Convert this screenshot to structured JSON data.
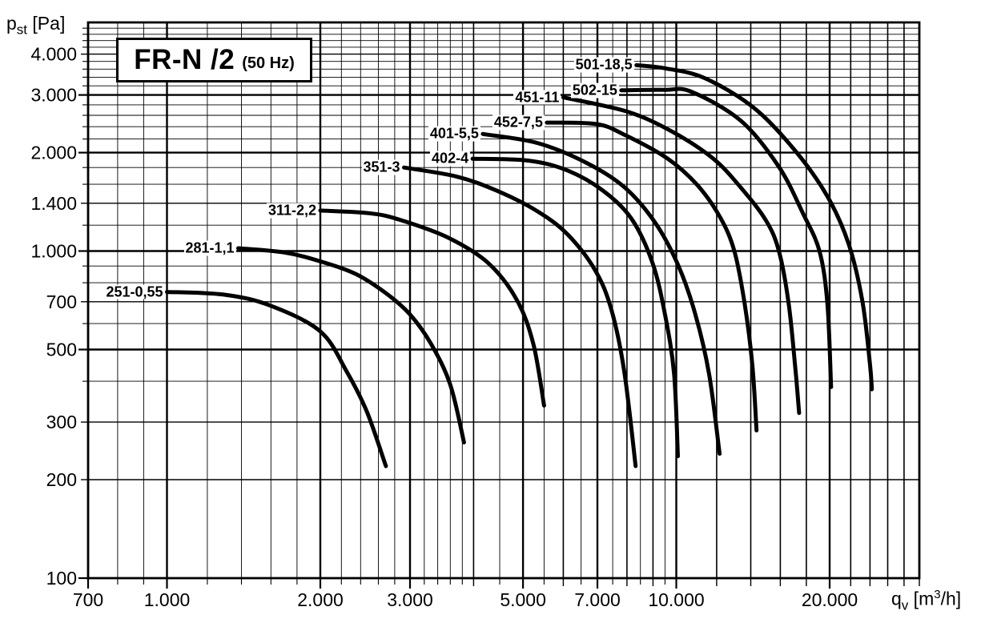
{
  "chart_data": {
    "type": "line",
    "title": {
      "main": "FR-N /2",
      "sub": "(50 Hz)"
    },
    "x_axis": {
      "unit_base": "q",
      "unit_sub": "v",
      "unit_rest_1": " [m",
      "unit_sup": "3",
      "unit_rest_2": "/h]",
      "scale": "log",
      "min": 700,
      "max": 30000,
      "ticks": [
        {
          "v": 700,
          "label": "700"
        },
        {
          "v": 1000,
          "label": "1.000"
        },
        {
          "v": 2000,
          "label": "2.000"
        },
        {
          "v": 3000,
          "label": "3.000"
        },
        {
          "v": 5000,
          "label": "5.000"
        },
        {
          "v": 7000,
          "label": "7.000"
        },
        {
          "v": 10000,
          "label": "10.000"
        },
        {
          "v": 20000,
          "label": "20.000"
        }
      ]
    },
    "y_axis": {
      "unit_base": "p",
      "unit_sub": "st",
      "unit_rest": " [Pa]",
      "scale": "log",
      "min": 100,
      "max": 5000,
      "ticks": [
        {
          "v": 100,
          "label": "100"
        },
        {
          "v": 200,
          "label": "200"
        },
        {
          "v": 300,
          "label": "300"
        },
        {
          "v": 500,
          "label": "500"
        },
        {
          "v": 700,
          "label": "700"
        },
        {
          "v": 1000,
          "label": "1.000"
        },
        {
          "v": 1400,
          "label": "1.400"
        },
        {
          "v": 2000,
          "label": "2.000"
        },
        {
          "v": 3000,
          "label": "3.000"
        },
        {
          "v": 4000,
          "label": "4.000"
        }
      ]
    },
    "grid": {
      "x_major": [
        1000,
        2000,
        3000,
        5000,
        7000,
        10000,
        20000
      ],
      "x_semi": [
        4000,
        6000,
        8000,
        9000,
        12000,
        14000,
        16000,
        18000,
        22000,
        24000,
        26000,
        28000
      ],
      "x_minor": [
        800,
        900,
        1200,
        1400,
        1600,
        1800,
        2200,
        2400,
        2600,
        2800,
        3200,
        3400,
        3600,
        3800,
        4500,
        5500,
        6500,
        7500,
        8500,
        9500
      ],
      "y_major": [
        500,
        1000,
        2000,
        3000
      ],
      "y_semi": [
        200,
        300,
        700,
        1400,
        4000
      ],
      "y_minor": [
        400,
        600,
        800,
        900,
        1200,
        1600,
        1800,
        2200,
        2400,
        2600,
        2800,
        3200,
        3400,
        3600,
        3800,
        4200,
        4400,
        4600,
        4800
      ]
    },
    "series": [
      {
        "name": "251-0,55",
        "points": [
          [
            1000,
            750
          ],
          [
            1300,
            735
          ],
          [
            1600,
            680
          ],
          [
            2000,
            568
          ],
          [
            2250,
            430
          ],
          [
            2470,
            322
          ],
          [
            2690,
            220
          ]
        ]
      },
      {
        "name": "281-1,1",
        "points": [
          [
            1380,
            1020
          ],
          [
            1700,
            990
          ],
          [
            2000,
            930
          ],
          [
            2350,
            850
          ],
          [
            2700,
            740
          ],
          [
            3000,
            640
          ],
          [
            3300,
            520
          ],
          [
            3600,
            390
          ],
          [
            3830,
            260
          ]
        ]
      },
      {
        "name": "311-2,2",
        "points": [
          [
            2000,
            1330
          ],
          [
            2500,
            1305
          ],
          [
            2870,
            1245
          ],
          [
            3560,
            1100
          ],
          [
            4270,
            920
          ],
          [
            4860,
            710
          ],
          [
            5240,
            520
          ],
          [
            5500,
            337
          ]
        ]
      },
      {
        "name": "351-3",
        "points": [
          [
            2920,
            1800
          ],
          [
            3700,
            1690
          ],
          [
            4440,
            1530
          ],
          [
            5330,
            1325
          ],
          [
            6130,
            1120
          ],
          [
            6940,
            870
          ],
          [
            7460,
            660
          ],
          [
            7900,
            430
          ],
          [
            8320,
            220
          ]
        ]
      },
      {
        "name": "402-4",
        "points": [
          [
            3980,
            1915
          ],
          [
            5130,
            1890
          ],
          [
            6130,
            1760
          ],
          [
            7180,
            1530
          ],
          [
            8180,
            1250
          ],
          [
            8980,
            920
          ],
          [
            9500,
            640
          ],
          [
            9900,
            420
          ],
          [
            10070,
            236
          ]
        ]
      },
      {
        "name": "401-5,5",
        "points": [
          [
            4170,
            2280
          ],
          [
            5330,
            2140
          ],
          [
            6620,
            1870
          ],
          [
            7900,
            1570
          ],
          [
            9090,
            1220
          ],
          [
            10100,
            900
          ],
          [
            10900,
            640
          ],
          [
            11600,
            420
          ],
          [
            12160,
            240
          ]
        ]
      },
      {
        "name": "452-7,5",
        "points": [
          [
            5570,
            2470
          ],
          [
            6960,
            2445
          ],
          [
            7900,
            2270
          ],
          [
            9600,
            1920
          ],
          [
            11000,
            1590
          ],
          [
            12200,
            1265
          ],
          [
            13000,
            1000
          ],
          [
            13600,
            700
          ],
          [
            14100,
            450
          ],
          [
            14370,
            283
          ]
        ]
      },
      {
        "name": "451-11",
        "points": [
          [
            6000,
            2950
          ],
          [
            8000,
            2670
          ],
          [
            9800,
            2320
          ],
          [
            11800,
            1920
          ],
          [
            13400,
            1560
          ],
          [
            15000,
            1240
          ],
          [
            15900,
            1000
          ],
          [
            16600,
            700
          ],
          [
            17100,
            450
          ],
          [
            17420,
            320
          ]
        ]
      },
      {
        "name": "502-15",
        "points": [
          [
            7800,
            3100
          ],
          [
            9500,
            3110
          ],
          [
            10700,
            3070
          ],
          [
            13400,
            2500
          ],
          [
            15900,
            1810
          ],
          [
            17700,
            1310
          ],
          [
            19100,
            1000
          ],
          [
            19800,
            690
          ],
          [
            20130,
            384
          ]
        ]
      },
      {
        "name": "501-18,5",
        "points": [
          [
            8350,
            3700
          ],
          [
            9500,
            3620
          ],
          [
            11360,
            3380
          ],
          [
            14200,
            2740
          ],
          [
            17100,
            2030
          ],
          [
            19800,
            1470
          ],
          [
            21800,
            1050
          ],
          [
            23200,
            700
          ],
          [
            24000,
            450
          ],
          [
            24200,
            378
          ]
        ]
      }
    ]
  }
}
